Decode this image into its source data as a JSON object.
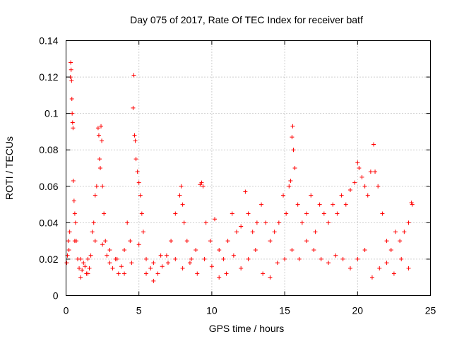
{
  "chart_data": {
    "type": "scatter",
    "title": "Day 075 of 2017, Rate Of TEC Index for receiver batf",
    "xlabel": "GPS time / hours",
    "ylabel": "ROTI / TECUs",
    "xlim": [
      0,
      25
    ],
    "ylim": [
      0,
      0.14
    ],
    "xticks": [
      "0",
      "5",
      "10",
      "15",
      "20",
      "25"
    ],
    "yticks": [
      "0",
      "0.02",
      "0.04",
      "0.06",
      "0.08",
      "0.1",
      "0.12",
      "0.14"
    ],
    "grid": true,
    "marker": "plus",
    "color": "#ff0000",
    "series": [
      {
        "values": [
          [
            0.05,
            0.018
          ],
          [
            0.1,
            0.022
          ],
          [
            0.15,
            0.03
          ],
          [
            0.2,
            0.025
          ],
          [
            0.25,
            0.035
          ],
          [
            0.3,
            0.12
          ],
          [
            0.32,
            0.128
          ],
          [
            0.35,
            0.124
          ],
          [
            0.38,
            0.118
          ],
          [
            0.4,
            0.108
          ],
          [
            0.42,
            0.1
          ],
          [
            0.45,
            0.095
          ],
          [
            0.48,
            0.092
          ],
          [
            0.5,
            0.063
          ],
          [
            0.55,
            0.052
          ],
          [
            0.6,
            0.045
          ],
          [
            0.65,
            0.04
          ],
          [
            0.7,
            0.03
          ],
          [
            0.8,
            0.02
          ],
          [
            0.9,
            0.015
          ],
          [
            1.0,
            0.01
          ],
          [
            1.1,
            0.014
          ],
          [
            1.2,
            0.018
          ],
          [
            1.3,
            0.016
          ],
          [
            1.4,
            0.012
          ],
          [
            1.5,
            0.02
          ],
          [
            1.6,
            0.015
          ],
          [
            1.7,
            0.022
          ],
          [
            1.8,
            0.035
          ],
          [
            1.9,
            0.04
          ],
          [
            2.0,
            0.055
          ],
          [
            2.1,
            0.06
          ],
          [
            2.2,
            0.092
          ],
          [
            2.25,
            0.088
          ],
          [
            2.3,
            0.075
          ],
          [
            2.35,
            0.07
          ],
          [
            2.4,
            0.093
          ],
          [
            2.45,
            0.085
          ],
          [
            2.5,
            0.06
          ],
          [
            2.6,
            0.045
          ],
          [
            2.7,
            0.03
          ],
          [
            2.8,
            0.022
          ],
          [
            3.0,
            0.018
          ],
          [
            3.2,
            0.015
          ],
          [
            3.4,
            0.02
          ],
          [
            3.6,
            0.012
          ],
          [
            3.8,
            0.016
          ],
          [
            4.0,
            0.025
          ],
          [
            4.2,
            0.04
          ],
          [
            4.4,
            0.03
          ],
          [
            4.6,
            0.103
          ],
          [
            4.65,
            0.121
          ],
          [
            4.7,
            0.088
          ],
          [
            4.75,
            0.085
          ],
          [
            4.8,
            0.075
          ],
          [
            4.9,
            0.068
          ],
          [
            5.0,
            0.062
          ],
          [
            5.1,
            0.055
          ],
          [
            5.2,
            0.045
          ],
          [
            5.3,
            0.035
          ],
          [
            5.5,
            0.02
          ],
          [
            5.8,
            0.015
          ],
          [
            6.0,
            0.018
          ],
          [
            6.3,
            0.012
          ],
          [
            6.6,
            0.016
          ],
          [
            6.9,
            0.022
          ],
          [
            7.2,
            0.03
          ],
          [
            7.5,
            0.045
          ],
          [
            7.8,
            0.055
          ],
          [
            7.9,
            0.06
          ],
          [
            8.0,
            0.05
          ],
          [
            8.1,
            0.04
          ],
          [
            8.3,
            0.03
          ],
          [
            8.6,
            0.02
          ],
          [
            8.9,
            0.025
          ],
          [
            9.2,
            0.061
          ],
          [
            9.3,
            0.062
          ],
          [
            9.4,
            0.06
          ],
          [
            9.6,
            0.04
          ],
          [
            9.9,
            0.03
          ],
          [
            10.2,
            0.042
          ],
          [
            10.5,
            0.025
          ],
          [
            10.8,
            0.02
          ],
          [
            11.1,
            0.03
          ],
          [
            11.4,
            0.045
          ],
          [
            11.7,
            0.035
          ],
          [
            12.0,
            0.038
          ],
          [
            12.3,
            0.057
          ],
          [
            12.5,
            0.045
          ],
          [
            12.8,
            0.035
          ],
          [
            13.1,
            0.04
          ],
          [
            13.4,
            0.05
          ],
          [
            13.7,
            0.04
          ],
          [
            14.0,
            0.03
          ],
          [
            14.3,
            0.035
          ],
          [
            14.6,
            0.04
          ],
          [
            14.9,
            0.055
          ],
          [
            15.1,
            0.045
          ],
          [
            15.3,
            0.06
          ],
          [
            15.4,
            0.063
          ],
          [
            15.5,
            0.087
          ],
          [
            15.55,
            0.093
          ],
          [
            15.6,
            0.08
          ],
          [
            15.7,
            0.07
          ],
          [
            15.9,
            0.05
          ],
          [
            16.2,
            0.04
          ],
          [
            16.5,
            0.045
          ],
          [
            16.8,
            0.055
          ],
          [
            17.1,
            0.035
          ],
          [
            17.4,
            0.05
          ],
          [
            17.7,
            0.045
          ],
          [
            18.0,
            0.04
          ],
          [
            18.3,
            0.05
          ],
          [
            18.6,
            0.045
          ],
          [
            18.9,
            0.055
          ],
          [
            19.2,
            0.05
          ],
          [
            19.5,
            0.058
          ],
          [
            19.8,
            0.062
          ],
          [
            20.0,
            0.073
          ],
          [
            20.1,
            0.07
          ],
          [
            20.3,
            0.065
          ],
          [
            20.5,
            0.06
          ],
          [
            20.7,
            0.055
          ],
          [
            20.9,
            0.068
          ],
          [
            21.1,
            0.083
          ],
          [
            21.2,
            0.068
          ],
          [
            21.4,
            0.06
          ],
          [
            21.7,
            0.045
          ],
          [
            22.0,
            0.03
          ],
          [
            22.3,
            0.025
          ],
          [
            22.6,
            0.035
          ],
          [
            22.9,
            0.03
          ],
          [
            23.2,
            0.035
          ],
          [
            23.5,
            0.04
          ],
          [
            23.7,
            0.051
          ],
          [
            23.75,
            0.05
          ],
          [
            0.6,
            0.03
          ],
          [
            1.0,
            0.02
          ],
          [
            1.5,
            0.012
          ],
          [
            2.0,
            0.03
          ],
          [
            2.5,
            0.028
          ],
          [
            3.0,
            0.025
          ],
          [
            3.5,
            0.02
          ],
          [
            4.0,
            0.012
          ],
          [
            4.5,
            0.018
          ],
          [
            5.0,
            0.028
          ],
          [
            5.5,
            0.012
          ],
          [
            6.0,
            0.008
          ],
          [
            6.5,
            0.022
          ],
          [
            7.0,
            0.018
          ],
          [
            7.5,
            0.02
          ],
          [
            8.0,
            0.015
          ],
          [
            8.5,
            0.018
          ],
          [
            9.0,
            0.012
          ],
          [
            9.5,
            0.02
          ],
          [
            10.0,
            0.016
          ],
          [
            10.5,
            0.01
          ],
          [
            11.0,
            0.012
          ],
          [
            11.5,
            0.022
          ],
          [
            12.0,
            0.015
          ],
          [
            12.5,
            0.02
          ],
          [
            13.0,
            0.025
          ],
          [
            13.5,
            0.012
          ],
          [
            14.0,
            0.01
          ],
          [
            14.5,
            0.018
          ],
          [
            15.0,
            0.02
          ],
          [
            15.5,
            0.025
          ],
          [
            16.0,
            0.02
          ],
          [
            16.5,
            0.03
          ],
          [
            17.0,
            0.025
          ],
          [
            17.5,
            0.02
          ],
          [
            18.0,
            0.018
          ],
          [
            18.5,
            0.022
          ],
          [
            19.0,
            0.02
          ],
          [
            19.5,
            0.015
          ],
          [
            20.0,
            0.02
          ],
          [
            20.5,
            0.025
          ],
          [
            21.0,
            0.01
          ],
          [
            21.5,
            0.015
          ],
          [
            22.0,
            0.018
          ],
          [
            22.5,
            0.012
          ],
          [
            23.0,
            0.02
          ],
          [
            23.5,
            0.015
          ]
        ]
      }
    ]
  }
}
